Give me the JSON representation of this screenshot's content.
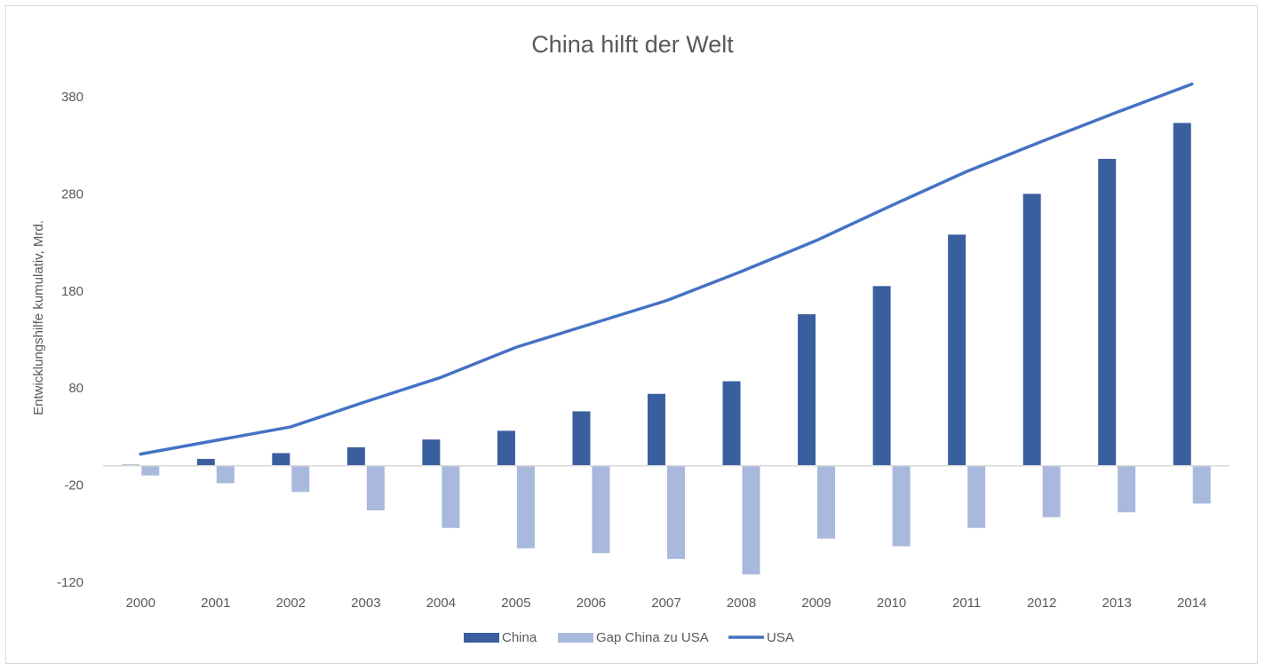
{
  "chart_data": {
    "type": "bar",
    "title": "China hilft der Welt",
    "ylabel": "Entwicklungshilfe kumulativ, Mrd.",
    "xlabel": "",
    "categories": [
      "2000",
      "2001",
      "2002",
      "2003",
      "2004",
      "2005",
      "2006",
      "2007",
      "2008",
      "2009",
      "2010",
      "2011",
      "2012",
      "2013",
      "2014"
    ],
    "yticks": [
      380,
      280,
      180,
      80,
      -20,
      -120
    ],
    "ylim": [
      -120,
      400
    ],
    "grid": false,
    "legend_position": "bottom",
    "series": [
      {
        "name": "China",
        "kind": "bar",
        "color": "#3a5f9f",
        "values": [
          1,
          7,
          13,
          19,
          27,
          36,
          56,
          74,
          87,
          156,
          185,
          238,
          280,
          316,
          353
        ]
      },
      {
        "name": "Gap China zu USA",
        "kind": "bar",
        "color": "#a9b8dd",
        "values": [
          -10,
          -18,
          -27,
          -46,
          -64,
          -85,
          -90,
          -96,
          -112,
          -75,
          -83,
          -64,
          -53,
          -48,
          -39
        ]
      },
      {
        "name": "USA",
        "kind": "line",
        "color": "#4472c4",
        "values": [
          12,
          26,
          40,
          66,
          91,
          122,
          146,
          170,
          200,
          232,
          268,
          303,
          334,
          364,
          393
        ]
      }
    ]
  }
}
